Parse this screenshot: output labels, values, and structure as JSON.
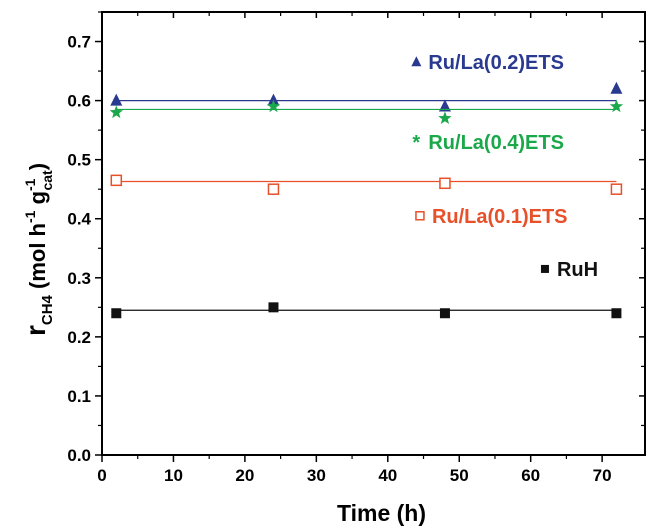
{
  "chart_data": {
    "type": "scatter",
    "xlabel": "Time (h)",
    "ylabel": {
      "main": "r",
      "main_sub": "CH4",
      "unit_open": "(mol h",
      "unit_sup1": "-1",
      "unit_mid": " g",
      "unit_sub": "cat",
      "unit_sup2": "-1",
      "unit_close": ")"
    },
    "xlim": [
      0,
      76
    ],
    "ylim": [
      0,
      0.75
    ],
    "xticks": [
      0,
      10,
      20,
      30,
      40,
      50,
      60,
      70
    ],
    "yticks": [
      0.0,
      0.1,
      0.2,
      0.3,
      0.4,
      0.5,
      0.6,
      0.7
    ],
    "ytick_labels": [
      "0.0",
      "0.1",
      "0.2",
      "0.3",
      "0.4",
      "0.5",
      "0.6",
      "0.7"
    ],
    "grid": false,
    "series": [
      {
        "name": "Ru/La(0.2)ETS",
        "marker": "triangle",
        "color": "#2a3a8f",
        "x": [
          2,
          24,
          48,
          72
        ],
        "y": [
          0.6,
          0.6,
          0.59,
          0.62
        ],
        "fit": 0.6
      },
      {
        "name": "Ru/La(0.4)ETS",
        "marker": "star",
        "color": "#1aa84a",
        "x": [
          2,
          24,
          48,
          72
        ],
        "y": [
          0.58,
          0.59,
          0.57,
          0.59
        ],
        "fit": 0.585
      },
      {
        "name": "Ru/La(0.1)ETS",
        "marker": "open-square",
        "color": "#e8502a",
        "x": [
          2,
          24,
          48,
          72
        ],
        "y": [
          0.465,
          0.45,
          0.46,
          0.45
        ],
        "fit": 0.463
      },
      {
        "name": "RuH",
        "marker": "square",
        "color": "#111111",
        "x": [
          2,
          24,
          48,
          72
        ],
        "y": [
          0.24,
          0.25,
          0.24,
          0.24
        ],
        "fit": 0.245
      }
    ],
    "legend": [
      {
        "series": "Ru/La(0.2)ETS",
        "label": "Ru/La(0.2)ETS",
        "symbol_text": "",
        "at": [
          44,
          0.665
        ]
      },
      {
        "series": "Ru/La(0.4)ETS",
        "label": "Ru/La(0.4)ETS",
        "symbol_text": "*",
        "at": [
          44,
          0.53
        ]
      },
      {
        "series": "Ru/La(0.1)ETS",
        "label": "Ru/La(0.1)ETS",
        "symbol_text": "",
        "at": [
          44.5,
          0.405
        ]
      },
      {
        "series": "RuH",
        "label": "RuH",
        "symbol_text": "",
        "at": [
          62,
          0.315
        ]
      }
    ]
  }
}
